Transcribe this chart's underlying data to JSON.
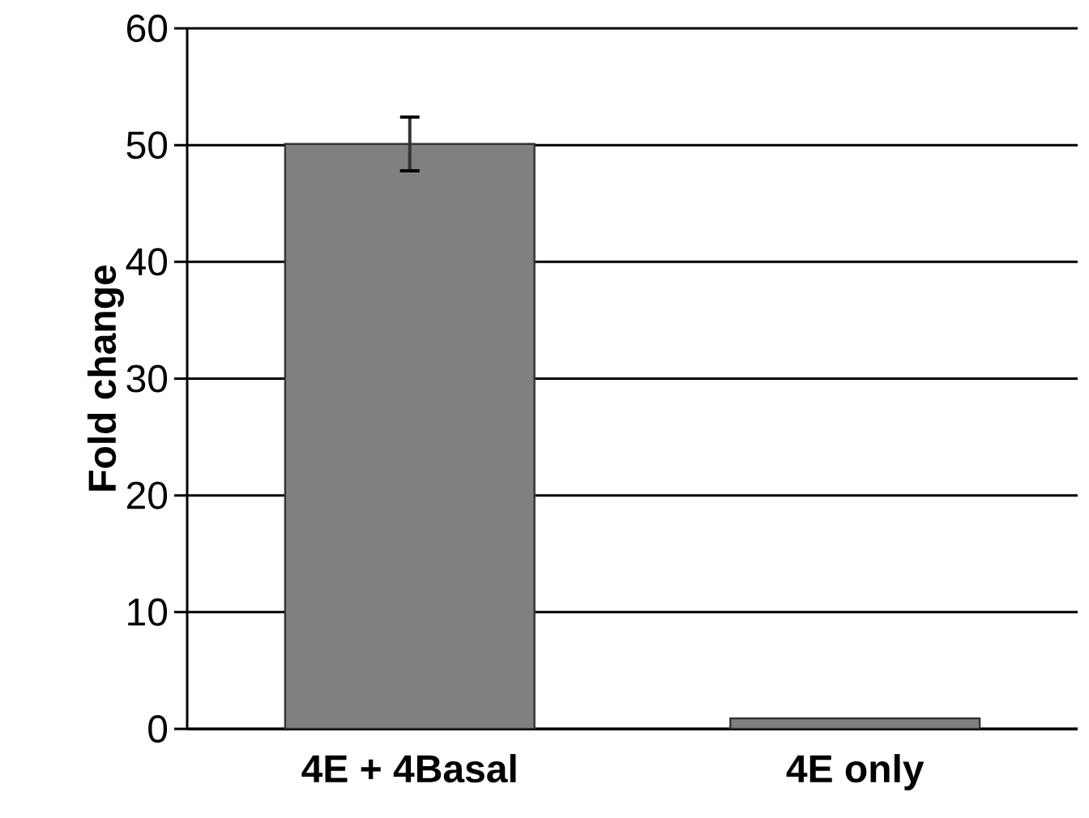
{
  "chart_data": {
    "type": "bar",
    "ylabel": "Fold change",
    "categories": [
      "4E + 4Basal",
      "4E only"
    ],
    "values": [
      50.1,
      0.9
    ],
    "errors": [
      2.3,
      null
    ],
    "color": "#808080",
    "ylim": [
      0,
      60
    ],
    "yticks": [
      0,
      10,
      20,
      30,
      40,
      50,
      60
    ],
    "grid": "y"
  }
}
